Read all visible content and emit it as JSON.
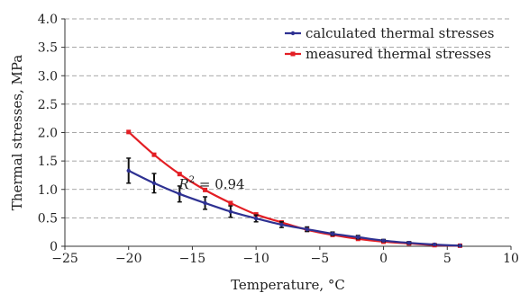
{
  "chart_data": {
    "type": "line",
    "xlabel": "Temperature, °C",
    "ylabel": "Thermal stresses, MPa",
    "xlim": [
      -25,
      10
    ],
    "ylim": [
      0,
      4.0
    ],
    "x_ticks": [
      "−25",
      "−20",
      "−15",
      "−10",
      "−5",
      "0",
      "5",
      "10"
    ],
    "x_tick_values": [
      -25,
      -20,
      -15,
      -10,
      -5,
      0,
      5,
      10
    ],
    "y_ticks": [
      "0",
      "0.5",
      "1.0",
      "1.5",
      "2.0",
      "2.5",
      "3.0",
      "3.5",
      "4.0"
    ],
    "y_tick_values": [
      0,
      0.5,
      1.0,
      1.5,
      2.0,
      2.5,
      3.0,
      3.5,
      4.0
    ],
    "grid": "horizontal dashed",
    "legend_position": "top-right",
    "series": [
      {
        "name": "calculated thermal stresses",
        "color": "#2e3192",
        "x": [
          -20,
          -18,
          -16,
          -14,
          -12,
          -10,
          -8,
          -6,
          -4,
          -2,
          0,
          2,
          4,
          6
        ],
        "y": [
          1.33,
          1.11,
          0.92,
          0.76,
          0.61,
          0.49,
          0.38,
          0.3,
          0.22,
          0.16,
          0.1,
          0.06,
          0.03,
          0.01
        ],
        "error": [
          0.22,
          0.17,
          0.14,
          0.11,
          0.1,
          0.06,
          0.05,
          0.04,
          0.03,
          0.03,
          0.02,
          0.02,
          0.01,
          0.01
        ]
      },
      {
        "name": "measured thermal stresses",
        "color": "#e31e24",
        "x": [
          -20,
          -18,
          -16,
          -14,
          -12,
          -10,
          -8,
          -6,
          -4,
          -2,
          0,
          2,
          4,
          6
        ],
        "y": [
          2.01,
          1.61,
          1.27,
          0.99,
          0.76,
          0.56,
          0.42,
          0.29,
          0.2,
          0.13,
          0.08,
          0.05,
          0.02,
          0.01
        ]
      }
    ],
    "annotation": {
      "prefix": "R",
      "superscript": "2",
      "suffix": " = 0.94",
      "at": [
        -15,
        1.2
      ]
    }
  }
}
